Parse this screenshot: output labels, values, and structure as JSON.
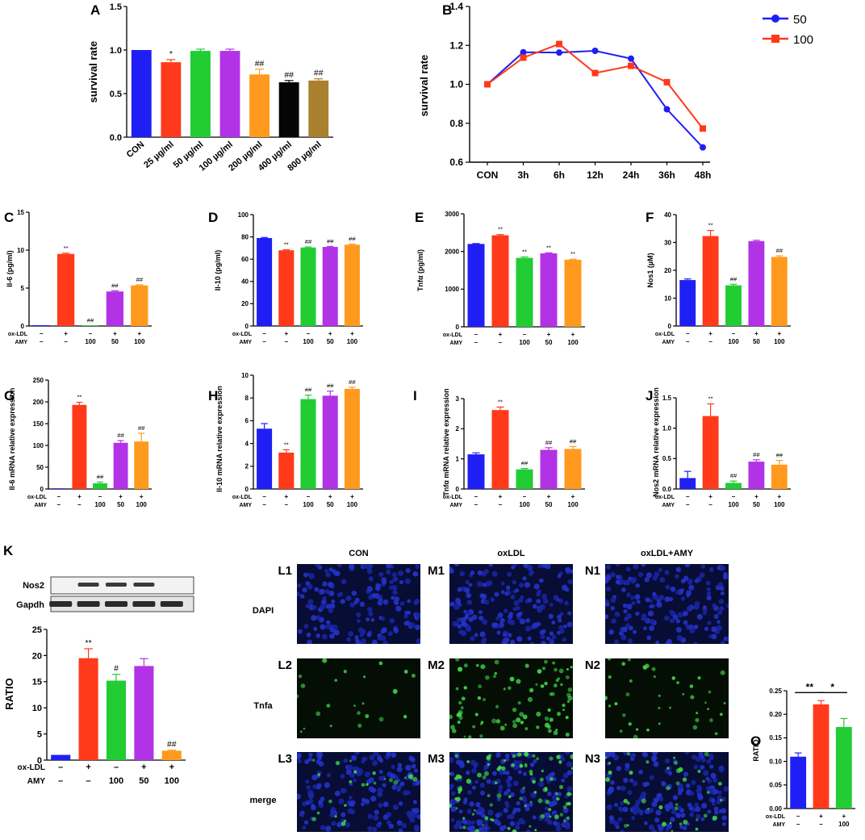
{
  "chart_data": [
    {
      "id": "A",
      "type": "bar",
      "panel_label": "A",
      "title": "",
      "xlabel": "",
      "ylabel": "survival rate",
      "ylim": [
        0,
        1.5
      ],
      "yticks": [
        "0.0",
        "0.5",
        "1.0",
        "1.5"
      ],
      "tick_values": [
        0,
        0.5,
        1.0,
        1.5
      ],
      "categories": [
        "CON",
        "25 µg/ml",
        "50 µg/ml",
        "100 µg/ml",
        "200 µg/ml",
        "400 µg/ml",
        "800 µg/ml"
      ],
      "values": [
        1.0,
        0.86,
        0.99,
        0.99,
        0.72,
        0.63,
        0.65
      ],
      "errors": [
        0,
        0.03,
        0.02,
        0.02,
        0.06,
        0.02,
        0.02
      ],
      "colors": [
        "#1f1ff5",
        "#ff3a1a",
        "#22cc33",
        "#b233e6",
        "#ff9a1e",
        "#050505",
        "#a9802e"
      ],
      "annotations": [
        "",
        "*",
        "",
        "",
        "##",
        "##",
        "##"
      ]
    },
    {
      "id": "B",
      "type": "line",
      "panel_label": "B",
      "ylabel": "survival rate",
      "xlabel": "",
      "ylim": [
        0.6,
        1.4
      ],
      "yticks": [
        "0.6",
        "0.8",
        "1.0",
        "1.2",
        "1.4"
      ],
      "tick_values": [
        0.6,
        0.8,
        1.0,
        1.2,
        1.4
      ],
      "categories": [
        "CON",
        "3h",
        "6h",
        "12h",
        "24h",
        "36h",
        "48h"
      ],
      "series": [
        {
          "name": "50",
          "color": "#1f1ff5",
          "marker": "circle",
          "values": [
            1.0,
            1.165,
            1.163,
            1.172,
            1.132,
            0.872,
            0.676
          ]
        },
        {
          "name": "100",
          "color": "#ff3a1a",
          "marker": "square",
          "values": [
            1.0,
            1.137,
            1.207,
            1.058,
            1.095,
            1.011,
            0.773
          ]
        }
      ],
      "legend": "top-right"
    },
    {
      "id": "C",
      "type": "bar",
      "panel_label": "C",
      "ylabel": "Il-6 (pg/ml)",
      "ylim": [
        0,
        15
      ],
      "yticks": [
        "0",
        "5",
        "10",
        "15"
      ],
      "tick_values": [
        0,
        5,
        10,
        15
      ],
      "values": [
        0.1,
        9.5,
        0.05,
        4.55,
        5.35
      ],
      "errors": [
        0,
        0.1,
        0,
        0.1,
        0.08
      ],
      "colors": [
        "#1f1ff5",
        "#ff3a1a",
        "#22cc33",
        "#b233e6",
        "#ff9a1e"
      ],
      "annotations": [
        "",
        "**",
        "##",
        "##",
        "##"
      ],
      "treatment_rows": [
        {
          "label": "ox-LDL",
          "signs": [
            "–",
            "+",
            "–",
            "+",
            "+"
          ]
        },
        {
          "label": "AMY",
          "signs": [
            "–",
            "–",
            "100",
            "50",
            "100"
          ]
        }
      ]
    },
    {
      "id": "D",
      "type": "bar",
      "panel_label": "D",
      "ylabel": "Il-10 (pg/ml)",
      "ylim": [
        0,
        100
      ],
      "yticks": [
        "0",
        "20",
        "40",
        "60",
        "80",
        "100"
      ],
      "tick_values": [
        0,
        20,
        40,
        60,
        80,
        100
      ],
      "values": [
        79,
        68,
        70.5,
        71,
        73
      ],
      "errors": [
        0.5,
        0.5,
        0.5,
        0.5,
        0.5
      ],
      "colors": [
        "#1f1ff5",
        "#ff3a1a",
        "#22cc33",
        "#b233e6",
        "#ff9a1e"
      ],
      "annotations": [
        "",
        "**",
        "##",
        "##",
        "##"
      ],
      "treatment_rows": [
        {
          "label": "ox-LDL",
          "signs": [
            "–",
            "+",
            "–",
            "+",
            "+"
          ]
        },
        {
          "label": "AMY",
          "signs": [
            "–",
            "–",
            "100",
            "50",
            "100"
          ]
        }
      ]
    },
    {
      "id": "E",
      "type": "bar",
      "panel_label": "E",
      "ylabel": "Tnfα (pg/ml)",
      "ylim": [
        0,
        3000
      ],
      "yticks": [
        "0",
        "1000",
        "2000",
        "3000"
      ],
      "tick_values": [
        0,
        1000,
        2000,
        3000
      ],
      "values": [
        2200,
        2430,
        1830,
        1950,
        1780
      ],
      "errors": [
        10,
        20,
        25,
        15,
        15
      ],
      "colors": [
        "#1f1ff5",
        "#ff3a1a",
        "#22cc33",
        "#b233e6",
        "#ff9a1e"
      ],
      "annotations": [
        "",
        "**",
        "**",
        "**",
        "**"
      ],
      "treatment_rows": [
        {
          "label": "ox-LDL",
          "signs": [
            "–",
            "+",
            "–",
            "+",
            "+"
          ]
        },
        {
          "label": "AMY",
          "signs": [
            "–",
            "–",
            "100",
            "50",
            "100"
          ]
        }
      ]
    },
    {
      "id": "F",
      "type": "bar",
      "panel_label": "F",
      "ylabel": "Nos1 (µM)",
      "ylim": [
        0,
        40
      ],
      "yticks": [
        "0",
        "10",
        "20",
        "30",
        "40"
      ],
      "tick_values": [
        0,
        10,
        20,
        30,
        40
      ],
      "values": [
        16.5,
        32.3,
        14.6,
        30.5,
        24.8
      ],
      "errors": [
        0.4,
        2.0,
        0.4,
        0.3,
        0.4
      ],
      "colors": [
        "#1f1ff5",
        "#ff3a1a",
        "#22cc33",
        "#b233e6",
        "#ff9a1e"
      ],
      "annotations": [
        "",
        "**",
        "##",
        "",
        "##"
      ],
      "treatment_rows": [
        {
          "label": "ox-LDL",
          "signs": [
            "–",
            "+",
            "–",
            "+",
            "+"
          ]
        },
        {
          "label": "AMY",
          "signs": [
            "–",
            "–",
            "100",
            "50",
            "100"
          ]
        }
      ]
    },
    {
      "id": "G",
      "type": "bar",
      "panel_label": "G",
      "ylabel": "Il-6 mRNA relative expression",
      "ylim": [
        0,
        250
      ],
      "yticks": [
        "0",
        "50",
        "100",
        "150",
        "200",
        "250"
      ],
      "tick_values": [
        0,
        50,
        100,
        150,
        200,
        250
      ],
      "values": [
        1,
        193,
        13,
        106,
        109
      ],
      "errors": [
        0,
        6,
        3,
        5,
        19
      ],
      "colors": [
        "#1f1ff5",
        "#ff3a1a",
        "#22cc33",
        "#b233e6",
        "#ff9a1e"
      ],
      "annotations": [
        "",
        "**",
        "##",
        "##",
        "##"
      ],
      "treatment_rows": [
        {
          "label": "ox-LDL",
          "signs": [
            "–",
            "+",
            "–",
            "+",
            "+"
          ]
        },
        {
          "label": "AMY",
          "signs": [
            "–",
            "–",
            "100",
            "50",
            "100"
          ]
        }
      ]
    },
    {
      "id": "H",
      "type": "bar",
      "panel_label": "H",
      "ylabel": "Il-10 mRNA relative expression",
      "ylim": [
        0,
        10
      ],
      "yticks": [
        "0",
        "2",
        "4",
        "6",
        "8",
        "10"
      ],
      "tick_values": [
        0,
        2,
        4,
        6,
        8,
        10
      ],
      "values": [
        5.3,
        3.2,
        7.9,
        8.2,
        8.8
      ],
      "errors": [
        0.45,
        0.25,
        0.35,
        0.4,
        0.15
      ],
      "colors": [
        "#1f1ff5",
        "#ff3a1a",
        "#22cc33",
        "#b233e6",
        "#ff9a1e"
      ],
      "annotations": [
        "",
        "**",
        "##",
        "##",
        "##"
      ],
      "treatment_rows": [
        {
          "label": "ox-LDL",
          "signs": [
            "–",
            "+",
            "–",
            "+",
            "+"
          ]
        },
        {
          "label": "AMY",
          "signs": [
            "–",
            "–",
            "100",
            "50",
            "100"
          ]
        }
      ]
    },
    {
      "id": "I",
      "type": "bar",
      "panel_label": "I",
      "ylabel": "Tnfα mRNA relative expression",
      "ylim": [
        0,
        3
      ],
      "yticks": [
        "0",
        "1",
        "2",
        "3"
      ],
      "tick_values": [
        0,
        1,
        2,
        3
      ],
      "values": [
        1.15,
        2.62,
        0.65,
        1.3,
        1.33
      ],
      "errors": [
        0.05,
        0.1,
        0.03,
        0.07,
        0.08
      ],
      "colors": [
        "#1f1ff5",
        "#ff3a1a",
        "#22cc33",
        "#b233e6",
        "#ff9a1e"
      ],
      "annotations": [
        "",
        "**",
        "##",
        "##",
        "##"
      ],
      "treatment_rows": [
        {
          "label": "ox-LDL",
          "signs": [
            "–",
            "+",
            "–",
            "+",
            "+"
          ]
        },
        {
          "label": "AMY",
          "signs": [
            "–",
            "–",
            "100",
            "50",
            "100"
          ]
        }
      ]
    },
    {
      "id": "J",
      "type": "bar",
      "panel_label": "J",
      "ylabel": "Nos2 mRNA relative expression",
      "ylim": [
        0,
        1.5
      ],
      "yticks": [
        "0.0",
        "0.5",
        "1.0",
        "1.5"
      ],
      "tick_values": [
        0,
        0.5,
        1.0,
        1.5
      ],
      "values": [
        0.18,
        1.2,
        0.1,
        0.45,
        0.4
      ],
      "errors": [
        0.11,
        0.2,
        0.03,
        0.03,
        0.07
      ],
      "colors": [
        "#1f1ff5",
        "#ff3a1a",
        "#22cc33",
        "#b233e6",
        "#ff9a1e"
      ],
      "annotations": [
        "",
        "**",
        "##",
        "##",
        "##"
      ],
      "treatment_rows": [
        {
          "label": "ox-LDL",
          "signs": [
            "–",
            "+",
            "–",
            "+",
            "+"
          ]
        },
        {
          "label": "AMY",
          "signs": [
            "–",
            "–",
            "100",
            "50",
            "100"
          ]
        }
      ]
    },
    {
      "id": "K",
      "type": "bar",
      "panel_label": "K",
      "ylabel": "RATIO",
      "ylim": [
        0,
        25
      ],
      "yticks": [
        "0",
        "5",
        "10",
        "15",
        "20",
        "25"
      ],
      "tick_values": [
        0,
        5,
        10,
        15,
        20,
        25
      ],
      "values": [
        1.0,
        19.5,
        15.2,
        18.0,
        1.8
      ],
      "errors": [
        0,
        1.8,
        1.2,
        1.4,
        0.1
      ],
      "colors": [
        "#1f1ff5",
        "#ff3a1a",
        "#22cc33",
        "#b233e6",
        "#ff9a1e"
      ],
      "annotations": [
        "",
        "**",
        "#",
        "",
        "##"
      ],
      "treatment_rows": [
        {
          "label": "ox-LDL",
          "signs": [
            "–",
            "+",
            "–",
            "+",
            "+"
          ]
        },
        {
          "label": "AMY",
          "signs": [
            "–",
            "–",
            "100",
            "50",
            "100"
          ]
        }
      ],
      "blot_labels": [
        "Nos2",
        "Gapdh"
      ]
    },
    {
      "id": "O",
      "type": "bar",
      "panel_label": "O",
      "ylabel": "RATIO",
      "ylim": [
        0,
        0.25
      ],
      "yticks": [
        "0.00",
        "0.05",
        "0.10",
        "0.15",
        "0.20",
        "0.25"
      ],
      "tick_values": [
        0,
        0.05,
        0.1,
        0.15,
        0.2,
        0.25
      ],
      "values": [
        0.11,
        0.221,
        0.173
      ],
      "errors": [
        0.008,
        0.008,
        0.018
      ],
      "colors": [
        "#1f1ff5",
        "#ff3a1a",
        "#22cc33"
      ],
      "comparisons": [
        {
          "from": 0,
          "to": 1,
          "label": "**"
        },
        {
          "from": 1,
          "to": 2,
          "label": "*"
        }
      ],
      "treatment_rows": [
        {
          "label": "ox-LDL",
          "signs": [
            "–",
            "+",
            "+"
          ]
        },
        {
          "label": "AMY",
          "signs": [
            "–",
            "–",
            "100"
          ]
        }
      ]
    }
  ],
  "microscopy": {
    "columns": [
      {
        "title": "CON",
        "labels": [
          "L1",
          "L2",
          "L3"
        ],
        "density": 0.25
      },
      {
        "title": "oxLDL",
        "labels": [
          "M1",
          "M2",
          "M3"
        ],
        "density": 1.0
      },
      {
        "title": "oxLDL+AMY",
        "labels": [
          "N1",
          "N2",
          "N3"
        ],
        "density": 0.45
      }
    ],
    "rows": [
      "DAPI",
      "Tnfa",
      "merge"
    ]
  }
}
